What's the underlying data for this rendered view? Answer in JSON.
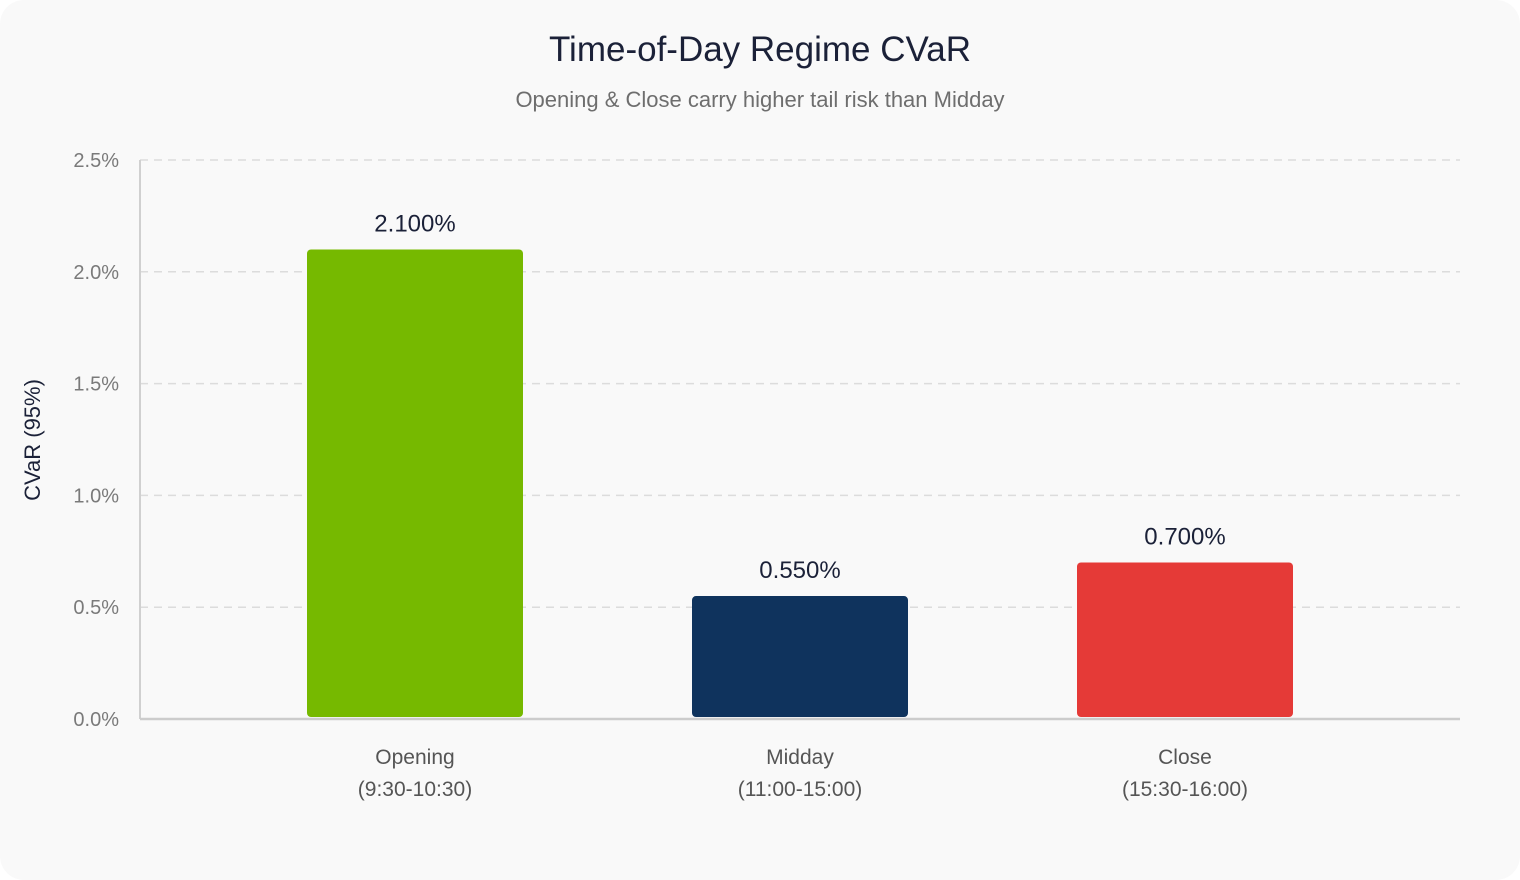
{
  "chart_data": {
    "type": "bar",
    "title": "Time-of-Day Regime CVaR",
    "subtitle": "Opening & Close carry higher tail risk than Midday",
    "xlabel": "",
    "ylabel": "CVaR (95%)",
    "ylim": [
      0,
      0.025
    ],
    "yticks": [
      0,
      0.005,
      0.01,
      0.015,
      0.02,
      0.025
    ],
    "ytick_labels": [
      "0.0%",
      "0.5%",
      "1.0%",
      "1.5%",
      "2.0%",
      "2.5%"
    ],
    "grid": "horizontal dashed",
    "categories": [
      {
        "line1": "Opening",
        "line2": "(9:30-10:30)"
      },
      {
        "line1": "Midday",
        "line2": "(11:00-15:00)"
      },
      {
        "line1": "Close",
        "line2": "(15:30-16:00)"
      }
    ],
    "values": [
      0.021,
      0.0055,
      0.007
    ],
    "value_labels": [
      "2.100%",
      "0.550%",
      "0.700%"
    ],
    "colors": [
      "#76b900",
      "#0f335d",
      "#e53a37"
    ]
  }
}
